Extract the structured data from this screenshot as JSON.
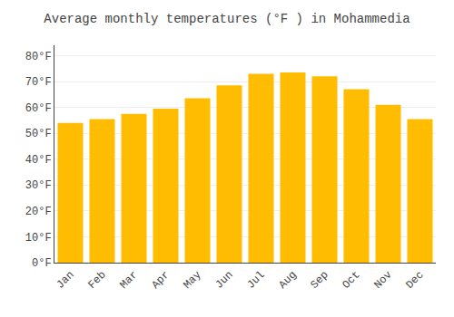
{
  "chart_data": {
    "type": "bar",
    "title": "Average monthly temperatures (°F ) in Mohammedia",
    "categories": [
      "Jan",
      "Feb",
      "Mar",
      "Apr",
      "May",
      "Jun",
      "Jul",
      "Aug",
      "Sep",
      "Oct",
      "Nov",
      "Dec"
    ],
    "values": [
      54,
      55.5,
      57.5,
      59.5,
      63.5,
      68.5,
      73,
      73.5,
      72,
      67,
      61,
      55.5
    ],
    "color": "#FFBC00",
    "ylim": [
      0,
      84
    ],
    "yticks": [
      {
        "value": 0,
        "label": "0°F"
      },
      {
        "value": 10,
        "label": "10°F"
      },
      {
        "value": 20,
        "label": "20°F"
      },
      {
        "value": 30,
        "label": "30°F"
      },
      {
        "value": 40,
        "label": "40°F"
      },
      {
        "value": 50,
        "label": "50°F"
      },
      {
        "value": 60,
        "label": "60°F"
      },
      {
        "value": 70,
        "label": "70°F"
      },
      {
        "value": 80,
        "label": "80°F"
      }
    ],
    "grid": true
  }
}
